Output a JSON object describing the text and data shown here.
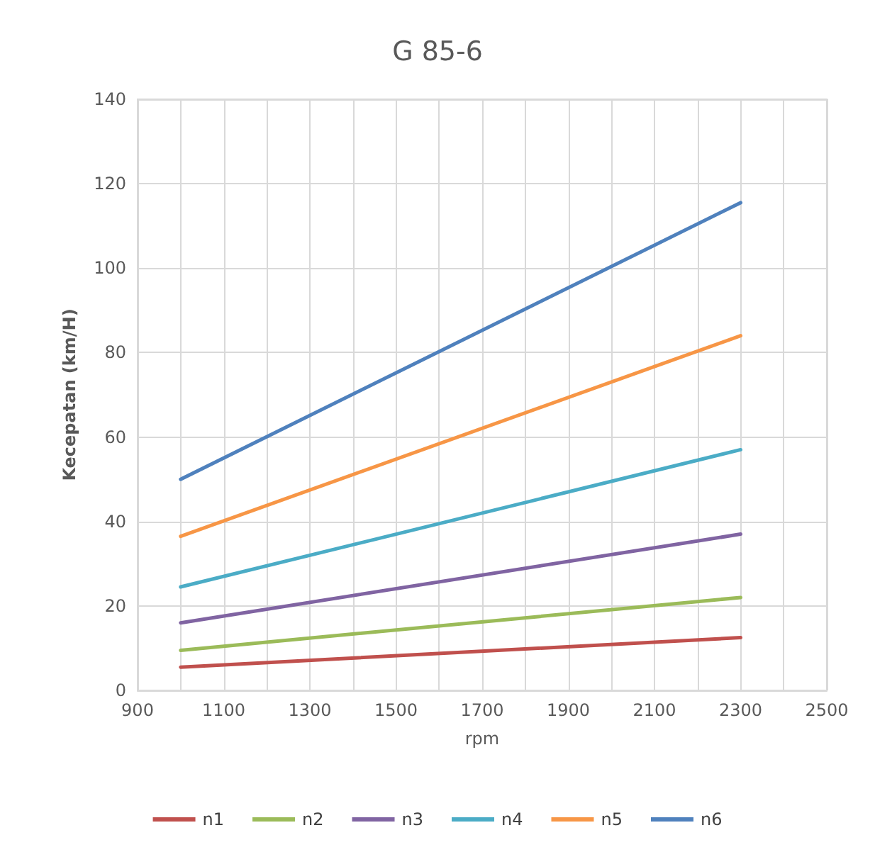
{
  "chart_data": {
    "type": "line",
    "title": "G 85-6",
    "xlabel": "rpm",
    "ylabel": "Kecepatan (km/H)",
    "x": [
      1000,
      2300
    ],
    "series": [
      {
        "name": "n1",
        "color": "#c0504d",
        "values": [
          5.5,
          12.5
        ]
      },
      {
        "name": "n2",
        "color": "#9bbb59",
        "values": [
          9.5,
          22
        ]
      },
      {
        "name": "n3",
        "color": "#8064a2",
        "values": [
          16,
          37
        ]
      },
      {
        "name": "n4",
        "color": "#4bacc6",
        "values": [
          24.5,
          57
        ]
      },
      {
        "name": "n5",
        "color": "#f79646",
        "values": [
          36.5,
          84
        ]
      },
      {
        "name": "n6",
        "color": "#4f81bd",
        "values": [
          50,
          115.5
        ]
      }
    ],
    "xlim": [
      900,
      2500
    ],
    "xticks": [
      900,
      {
        "value": 1000,
        "label": null
      },
      1100,
      {
        "value": 1200,
        "label": null
      },
      1300,
      {
        "value": 1400,
        "label": null
      },
      1500,
      {
        "value": 1600,
        "label": null
      },
      1700,
      {
        "value": 1800,
        "label": null
      },
      1900,
      {
        "value": 2000,
        "label": null
      },
      2100,
      {
        "value": 2200,
        "label": null
      },
      2300,
      {
        "value": 2400,
        "label": null
      },
      2500
    ],
    "ylim": [
      0,
      140
    ],
    "yticks": [
      0,
      20,
      40,
      60,
      80,
      100,
      120,
      140
    ],
    "grid": true,
    "legend": "bottom",
    "marker": "none",
    "line_style": "solid"
  }
}
